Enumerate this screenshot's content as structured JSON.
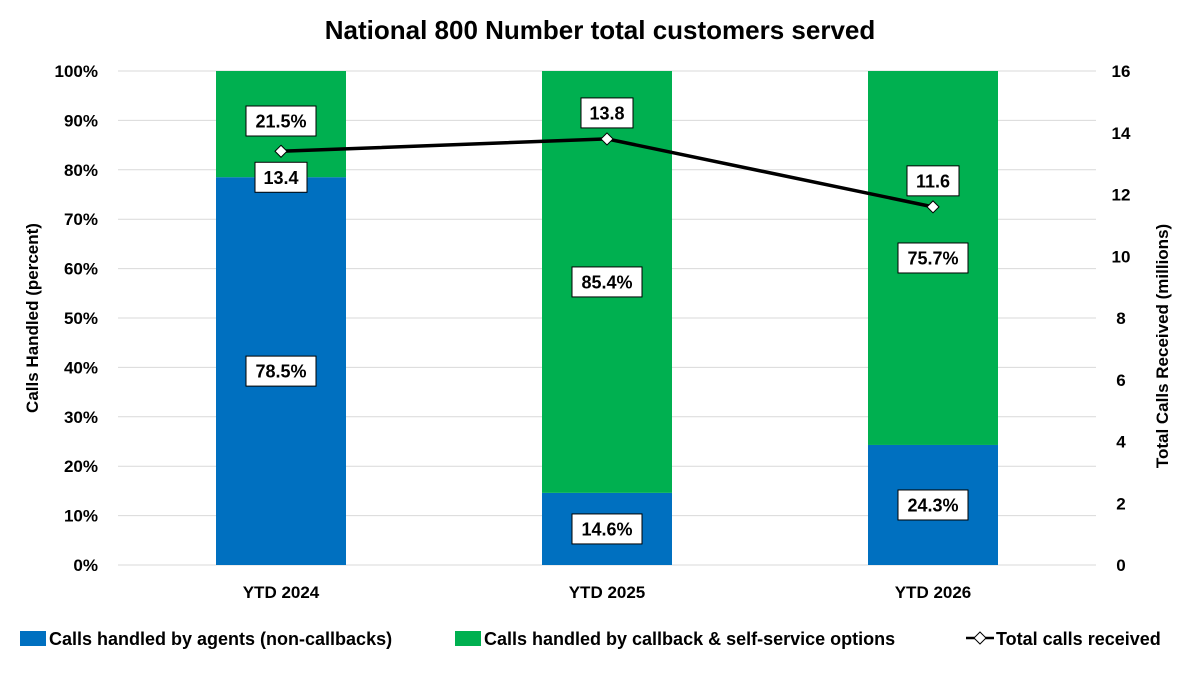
{
  "chart_data": {
    "type": "bar",
    "stacked": true,
    "title": "National 800 Number total customers served",
    "categories": [
      "YTD 2024",
      "YTD 2025",
      "YTD 2026"
    ],
    "ylabel": "Calls Handled (percent)",
    "y2label": "Total Calls Received (millions)",
    "ylim": [
      0,
      100
    ],
    "y2lim": [
      0,
      16
    ],
    "yticks": [
      "0%",
      "10%",
      "20%",
      "30%",
      "40%",
      "50%",
      "60%",
      "70%",
      "80%",
      "90%",
      "100%"
    ],
    "y2ticks": [
      "0",
      "2",
      "4",
      "6",
      "8",
      "10",
      "12",
      "14",
      "16"
    ],
    "grid": true,
    "legend_placement": "bottom",
    "series": [
      {
        "name": "Calls handled by agents (non-callbacks)",
        "type": "bar",
        "color": "#0070C0",
        "values": [
          78.5,
          14.6,
          24.3
        ],
        "labels": [
          "78.5%",
          "14.6%",
          "24.3%"
        ]
      },
      {
        "name": "Calls handled by callback & self-service options",
        "type": "bar",
        "color": "#00B050",
        "values": [
          21.5,
          85.4,
          75.7
        ],
        "labels": [
          "21.5%",
          "85.4%",
          "75.7%"
        ]
      },
      {
        "name": "Total calls received",
        "type": "line",
        "axis": "secondary",
        "color": "#000000",
        "marker": "diamond",
        "values": [
          13.4,
          13.8,
          11.6
        ],
        "labels": [
          "13.4",
          "13.8",
          "11.6"
        ]
      }
    ]
  }
}
